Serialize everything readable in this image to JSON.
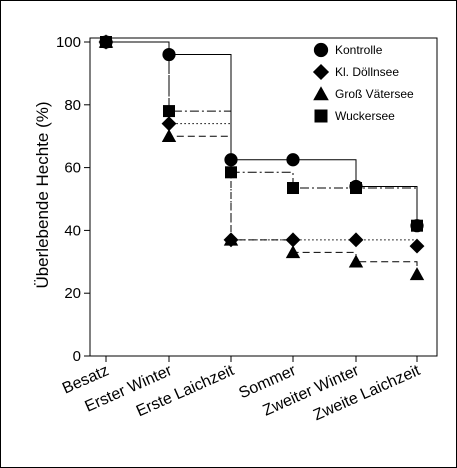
{
  "chart_data": {
    "type": "line",
    "step": true,
    "categories": [
      "Besatz",
      "Erster Winter",
      "Erste Laichzeit",
      "Sommer",
      "Zweiter Winter",
      "Zweite Laichzeit"
    ],
    "ylabel": "Überlebende Hechte (%)",
    "xlabel": "",
    "ylim": [
      0,
      100
    ],
    "yticks": [
      0,
      20,
      40,
      60,
      80,
      100
    ],
    "legend_position": "top-right",
    "grid": false,
    "series": [
      {
        "name": "Kontrolle",
        "marker": "circle",
        "line": "solid",
        "values": [
          100,
          96,
          62.5,
          62.5,
          54,
          41.5
        ]
      },
      {
        "name": "Kl. Döllnsee",
        "marker": "diamond",
        "line": "dotted",
        "values": [
          100,
          74,
          37,
          37,
          37,
          35
        ]
      },
      {
        "name": "Groß Vätersee",
        "marker": "triangle",
        "line": "dashed",
        "values": [
          100,
          70,
          37,
          33,
          30,
          26
        ]
      },
      {
        "name": "Wuckersee",
        "marker": "square",
        "line": "dashdot",
        "values": [
          100,
          78,
          58.5,
          53.5,
          53.5,
          41.5
        ]
      }
    ]
  }
}
